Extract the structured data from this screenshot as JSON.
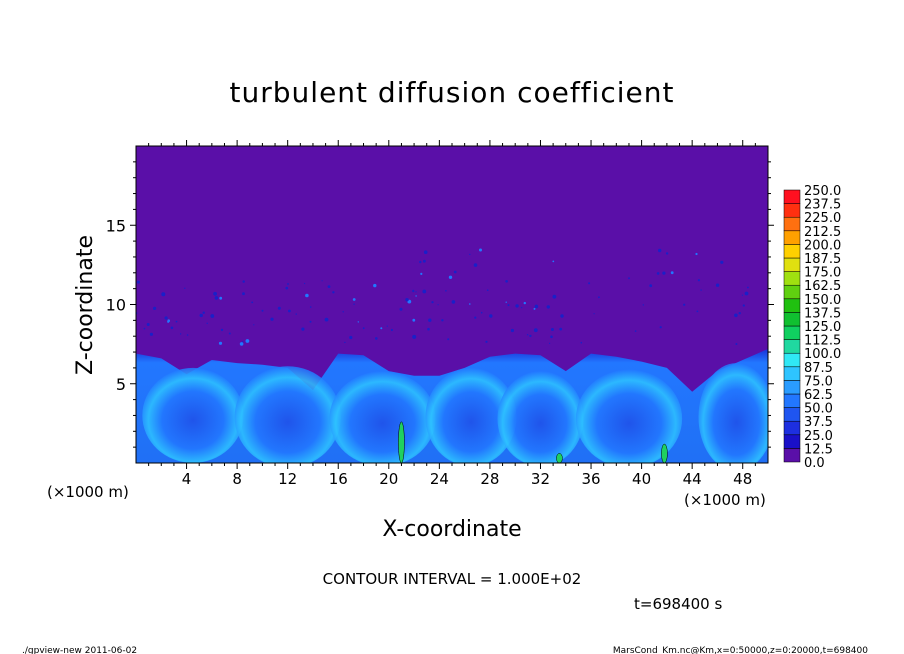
{
  "chart_data": {
    "type": "heatmap",
    "title": "turbulent diffusion coefficient",
    "xlabel": "X-coordinate",
    "ylabel": "Z-coordinate",
    "x_unit": "(×1000 m)",
    "x_unit_right": "(×1000 m)",
    "xlim": [
      0,
      50
    ],
    "ylim": [
      0,
      20
    ],
    "x_ticks": [
      "4",
      "8",
      "12",
      "16",
      "20",
      "24",
      "28",
      "32",
      "36",
      "40",
      "44",
      "48"
    ],
    "x_tick_values": [
      4,
      8,
      12,
      16,
      20,
      24,
      28,
      32,
      36,
      40,
      44,
      48
    ],
    "y_ticks": [
      "5",
      "10",
      "15"
    ],
    "y_tick_values": [
      5,
      10,
      15
    ],
    "colorbar": {
      "levels": [
        "0.0",
        "12.5",
        "25.0",
        "37.5",
        "50.0",
        "62.5",
        "75.0",
        "87.5",
        "100.0",
        "112.5",
        "125.0",
        "137.5",
        "150.0",
        "162.5",
        "175.0",
        "187.5",
        "200.0",
        "212.5",
        "225.0",
        "237.5",
        "250.0"
      ],
      "colors": [
        "#5a0fa8",
        "#1a10c8",
        "#1d2fe0",
        "#1f55f0",
        "#2277ff",
        "#2a9cff",
        "#2ec4ff",
        "#30e8f5",
        "#20d8a0",
        "#10d060",
        "#10c030",
        "#20c010",
        "#60d010",
        "#a0e010",
        "#e0e010",
        "#ffd000",
        "#ffa000",
        "#ff7010",
        "#ff3010",
        "#ff1020",
        "#f08080"
      ]
    },
    "approx_profile": {
      "description_x": [
        0,
        2,
        4,
        6,
        8,
        10,
        12,
        14,
        16,
        18,
        20,
        22,
        24,
        26,
        28,
        30,
        32,
        34,
        36,
        38,
        40,
        42,
        44,
        46,
        48,
        50
      ],
      "top_of_turbulent_layer_km": [
        6.9,
        6.6,
        5.6,
        6.5,
        6.3,
        6.2,
        6.0,
        4.6,
        6.9,
        6.8,
        5.8,
        5.5,
        5.5,
        6.0,
        6.7,
        6.9,
        6.8,
        5.8,
        6.9,
        6.7,
        6.4,
        6.0,
        4.5,
        5.8,
        6.5,
        7.2
      ]
    },
    "contour_interval": "CONTOUR INTERVAL = 1.000E+02",
    "time_label": "t=698400 s"
  },
  "footer": {
    "left": "./gpview-new  2011-06-02",
    "right": "MarsCond_Km.nc@Km,x=0:50000,z=0:20000,t=698400"
  }
}
